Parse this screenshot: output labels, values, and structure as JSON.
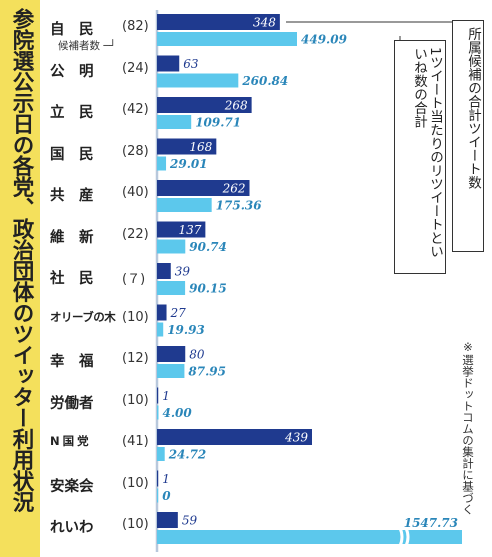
{
  "title": "参院選公示日の各党、政治団体のツイッター利用状況",
  "legend": {
    "dark_label": "所属候補の合計ツイート数",
    "light_label": "1ツイート当たりのリツイートといいね数の合計",
    "count_label": "候補者数"
  },
  "note": "※選挙ドットコムの集計に基づく",
  "colors": {
    "dark": "#1f3a8f",
    "light": "#5cc8ec",
    "band": "#f4e05c"
  },
  "chart_data": {
    "type": "bar",
    "title": "参院選公示日の各党、政治団体のツイッター利用状況",
    "categories": [
      "自民",
      "公明",
      "立民",
      "国民",
      "共産",
      "維新",
      "社民",
      "オリーブの木",
      "幸福",
      "労働者",
      "N国党",
      "安楽会",
      "れいわ"
    ],
    "category_labels": [
      {
        "name": "自　民",
        "count": "(82)"
      },
      {
        "name": "公　明",
        "count": "(24)"
      },
      {
        "name": "立　民",
        "count": "(42)"
      },
      {
        "name": "国　民",
        "count": "(28)"
      },
      {
        "name": "共　産",
        "count": "(40)"
      },
      {
        "name": "維　新",
        "count": "(22)"
      },
      {
        "name": "社　民",
        "count": "(７)"
      },
      {
        "name": "オリーブの木",
        "count": "(10)"
      },
      {
        "name": "幸　福",
        "count": "(12)"
      },
      {
        "name": "労働者",
        "count": "(10)"
      },
      {
        "name": "N 国 党",
        "count": "(41)"
      },
      {
        "name": "安楽会",
        "count": "(10)"
      },
      {
        "name": "れいわ",
        "count": "(10)"
      }
    ],
    "series": [
      {
        "name": "所属候補の合計ツイート数",
        "values": [
          348,
          63,
          268,
          168,
          262,
          137,
          39,
          27,
          80,
          1,
          439,
          1,
          59
        ],
        "labels": [
          "348",
          "63",
          "268",
          "168",
          "262",
          "137",
          "39",
          "27",
          "80",
          "1",
          "439",
          "1",
          "59"
        ]
      },
      {
        "name": "1ツイート当たりのリツイートといいね数の合計",
        "values": [
          449.09,
          260.84,
          109.71,
          29.01,
          175.36,
          90.74,
          90.15,
          19.93,
          87.95,
          4.0,
          24.72,
          0,
          1547.73
        ],
        "labels": [
          "449.09",
          "260.84",
          "109.71",
          "29.01",
          "175.36",
          "90.74",
          "90.15",
          "19.93",
          "87.95",
          "4.00",
          "24.72",
          "0",
          "1547.73"
        ]
      }
    ],
    "axis_break": "れいわ 1547.73 bar is truncated with a break mark"
  }
}
